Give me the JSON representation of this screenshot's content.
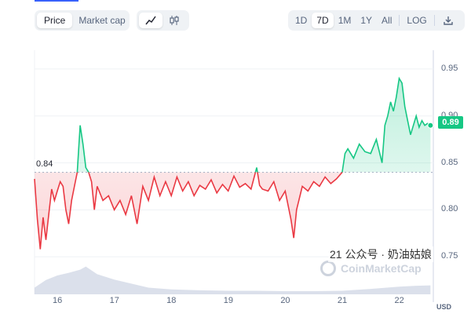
{
  "toolbar": {
    "type_buttons": [
      {
        "label": "Price",
        "active": true
      },
      {
        "label": "Market cap",
        "active": false
      }
    ],
    "chart_buttons": [
      {
        "icon": "line-chart-icon",
        "active": true
      },
      {
        "icon": "candlestick-icon",
        "active": false
      }
    ],
    "range_buttons": [
      {
        "label": "1D",
        "active": false
      },
      {
        "label": "7D",
        "active": true
      },
      {
        "label": "1M",
        "active": false
      },
      {
        "label": "1Y",
        "active": false
      },
      {
        "label": "All",
        "active": false
      }
    ],
    "log_label": "LOG",
    "download_icon": "download-icon"
  },
  "colors": {
    "up": "#16c784",
    "down": "#ea3943",
    "volume": "#cfd6e4",
    "grid": "#eff2f5"
  },
  "current_price_badge": "0.89",
  "start_price_label": "0.84",
  "currency_label": "USD",
  "watermark": "CoinMarketCap",
  "overlay_text": "21 公众号 · 奶油姑娘",
  "chart_data": {
    "type": "line",
    "title": "",
    "x_tick_labels": [
      "16",
      "17",
      "18",
      "19",
      "20",
      "21",
      "22"
    ],
    "y_tick_labels": [
      "0.95",
      "0.90",
      "0.85",
      "0.80",
      "0.75"
    ],
    "ylim": [
      0.71,
      0.97
    ],
    "reference_value": 0.84,
    "grid": true,
    "series": [
      {
        "x": [
          15.6,
          15.65,
          15.7,
          15.75,
          15.8,
          15.85,
          15.9,
          15.95,
          16.0,
          16.05,
          16.1,
          16.15,
          16.2,
          16.25,
          16.3,
          16.35,
          16.4,
          16.45,
          16.5,
          16.55,
          16.6,
          16.65,
          16.7,
          16.8,
          16.9,
          17.0,
          17.1,
          17.2,
          17.3,
          17.4,
          17.5,
          17.6,
          17.7,
          17.8,
          17.9,
          18.0,
          18.1,
          18.2,
          18.3,
          18.4,
          18.5,
          18.6,
          18.7,
          18.8,
          18.9,
          19.0,
          19.1,
          19.2,
          19.3,
          19.4,
          19.5,
          19.55,
          19.6,
          19.7,
          19.8,
          19.9,
          20.0,
          20.1,
          20.15,
          20.2,
          20.3,
          20.4,
          20.5,
          20.6,
          20.7,
          20.8,
          20.9,
          21.0,
          21.05,
          21.1,
          21.2,
          21.3,
          21.4,
          21.5,
          21.6,
          21.7,
          21.75,
          21.8,
          21.85,
          21.9,
          21.95,
          22.0,
          22.05,
          22.1,
          22.15,
          22.2,
          22.25,
          22.3,
          22.35,
          22.4,
          22.45,
          22.5,
          22.55
        ],
        "y": [
          0.833,
          0.79,
          0.758,
          0.792,
          0.768,
          0.795,
          0.822,
          0.81,
          0.82,
          0.83,
          0.825,
          0.8,
          0.785,
          0.81,
          0.825,
          0.84,
          0.89,
          0.87,
          0.845,
          0.84,
          0.83,
          0.8,
          0.825,
          0.81,
          0.815,
          0.8,
          0.81,
          0.795,
          0.815,
          0.785,
          0.825,
          0.81,
          0.835,
          0.815,
          0.83,
          0.815,
          0.835,
          0.82,
          0.83,
          0.815,
          0.826,
          0.822,
          0.832,
          0.818,
          0.827,
          0.82,
          0.836,
          0.824,
          0.828,
          0.822,
          0.845,
          0.826,
          0.822,
          0.82,
          0.83,
          0.81,
          0.82,
          0.79,
          0.77,
          0.8,
          0.825,
          0.82,
          0.83,
          0.825,
          0.835,
          0.828,
          0.833,
          0.84,
          0.86,
          0.865,
          0.855,
          0.87,
          0.862,
          0.86,
          0.875,
          0.85,
          0.89,
          0.9,
          0.915,
          0.905,
          0.92,
          0.94,
          0.935,
          0.91,
          0.895,
          0.88,
          0.89,
          0.9,
          0.888,
          0.895,
          0.89,
          0.892,
          0.89
        ]
      }
    ],
    "volume": {
      "x": [
        15.6,
        15.8,
        16.0,
        16.2,
        16.4,
        16.5,
        16.7,
        17.0,
        17.3,
        17.6,
        18.0,
        18.5,
        19.0,
        19.5,
        20.0,
        20.5,
        21.0,
        21.5,
        22.0,
        22.3,
        22.55
      ],
      "values": [
        0.15,
        0.32,
        0.42,
        0.48,
        0.55,
        0.62,
        0.45,
        0.33,
        0.24,
        0.15,
        0.11,
        0.09,
        0.08,
        0.08,
        0.07,
        0.07,
        0.08,
        0.12,
        0.17,
        0.19,
        0.2
      ]
    }
  }
}
